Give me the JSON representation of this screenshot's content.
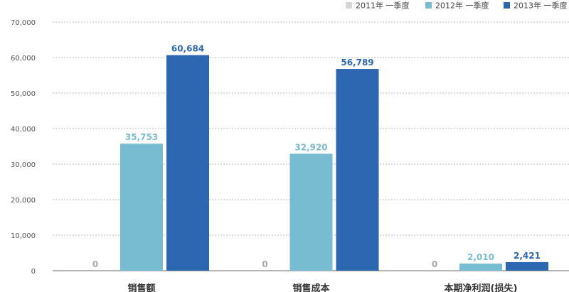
{
  "chart_data": {
    "type": "bar",
    "categories": [
      "销售额",
      "销售成本",
      "本期净利润(损失)"
    ],
    "series": [
      {
        "name": "2011年 一季度",
        "color": "#d6d6d6",
        "label_color": "#a9a9a9",
        "values": [
          0,
          0,
          0
        ]
      },
      {
        "name": "2012年 一季度",
        "color": "#78bcd2",
        "label_color": "#78bcd2",
        "values": [
          35753,
          32920,
          2010
        ]
      },
      {
        "name": "2013年 一季度",
        "color": "#2e67b1",
        "label_color": "#2e67b1",
        "values": [
          60684,
          56789,
          2421
        ]
      }
    ],
    "y_ticks": [
      "0",
      "10,000",
      "20,000",
      "30,000",
      "40,000",
      "50,000",
      "60,000",
      "70,000"
    ],
    "data_labels": [
      [
        "0",
        "0",
        "0"
      ],
      [
        "35,753",
        "32,920",
        "2,010"
      ],
      [
        "60,684",
        "56,789",
        "2,421"
      ]
    ],
    "ylim": [
      0,
      70000
    ],
    "grid": true,
    "legend_position": "top-right"
  }
}
